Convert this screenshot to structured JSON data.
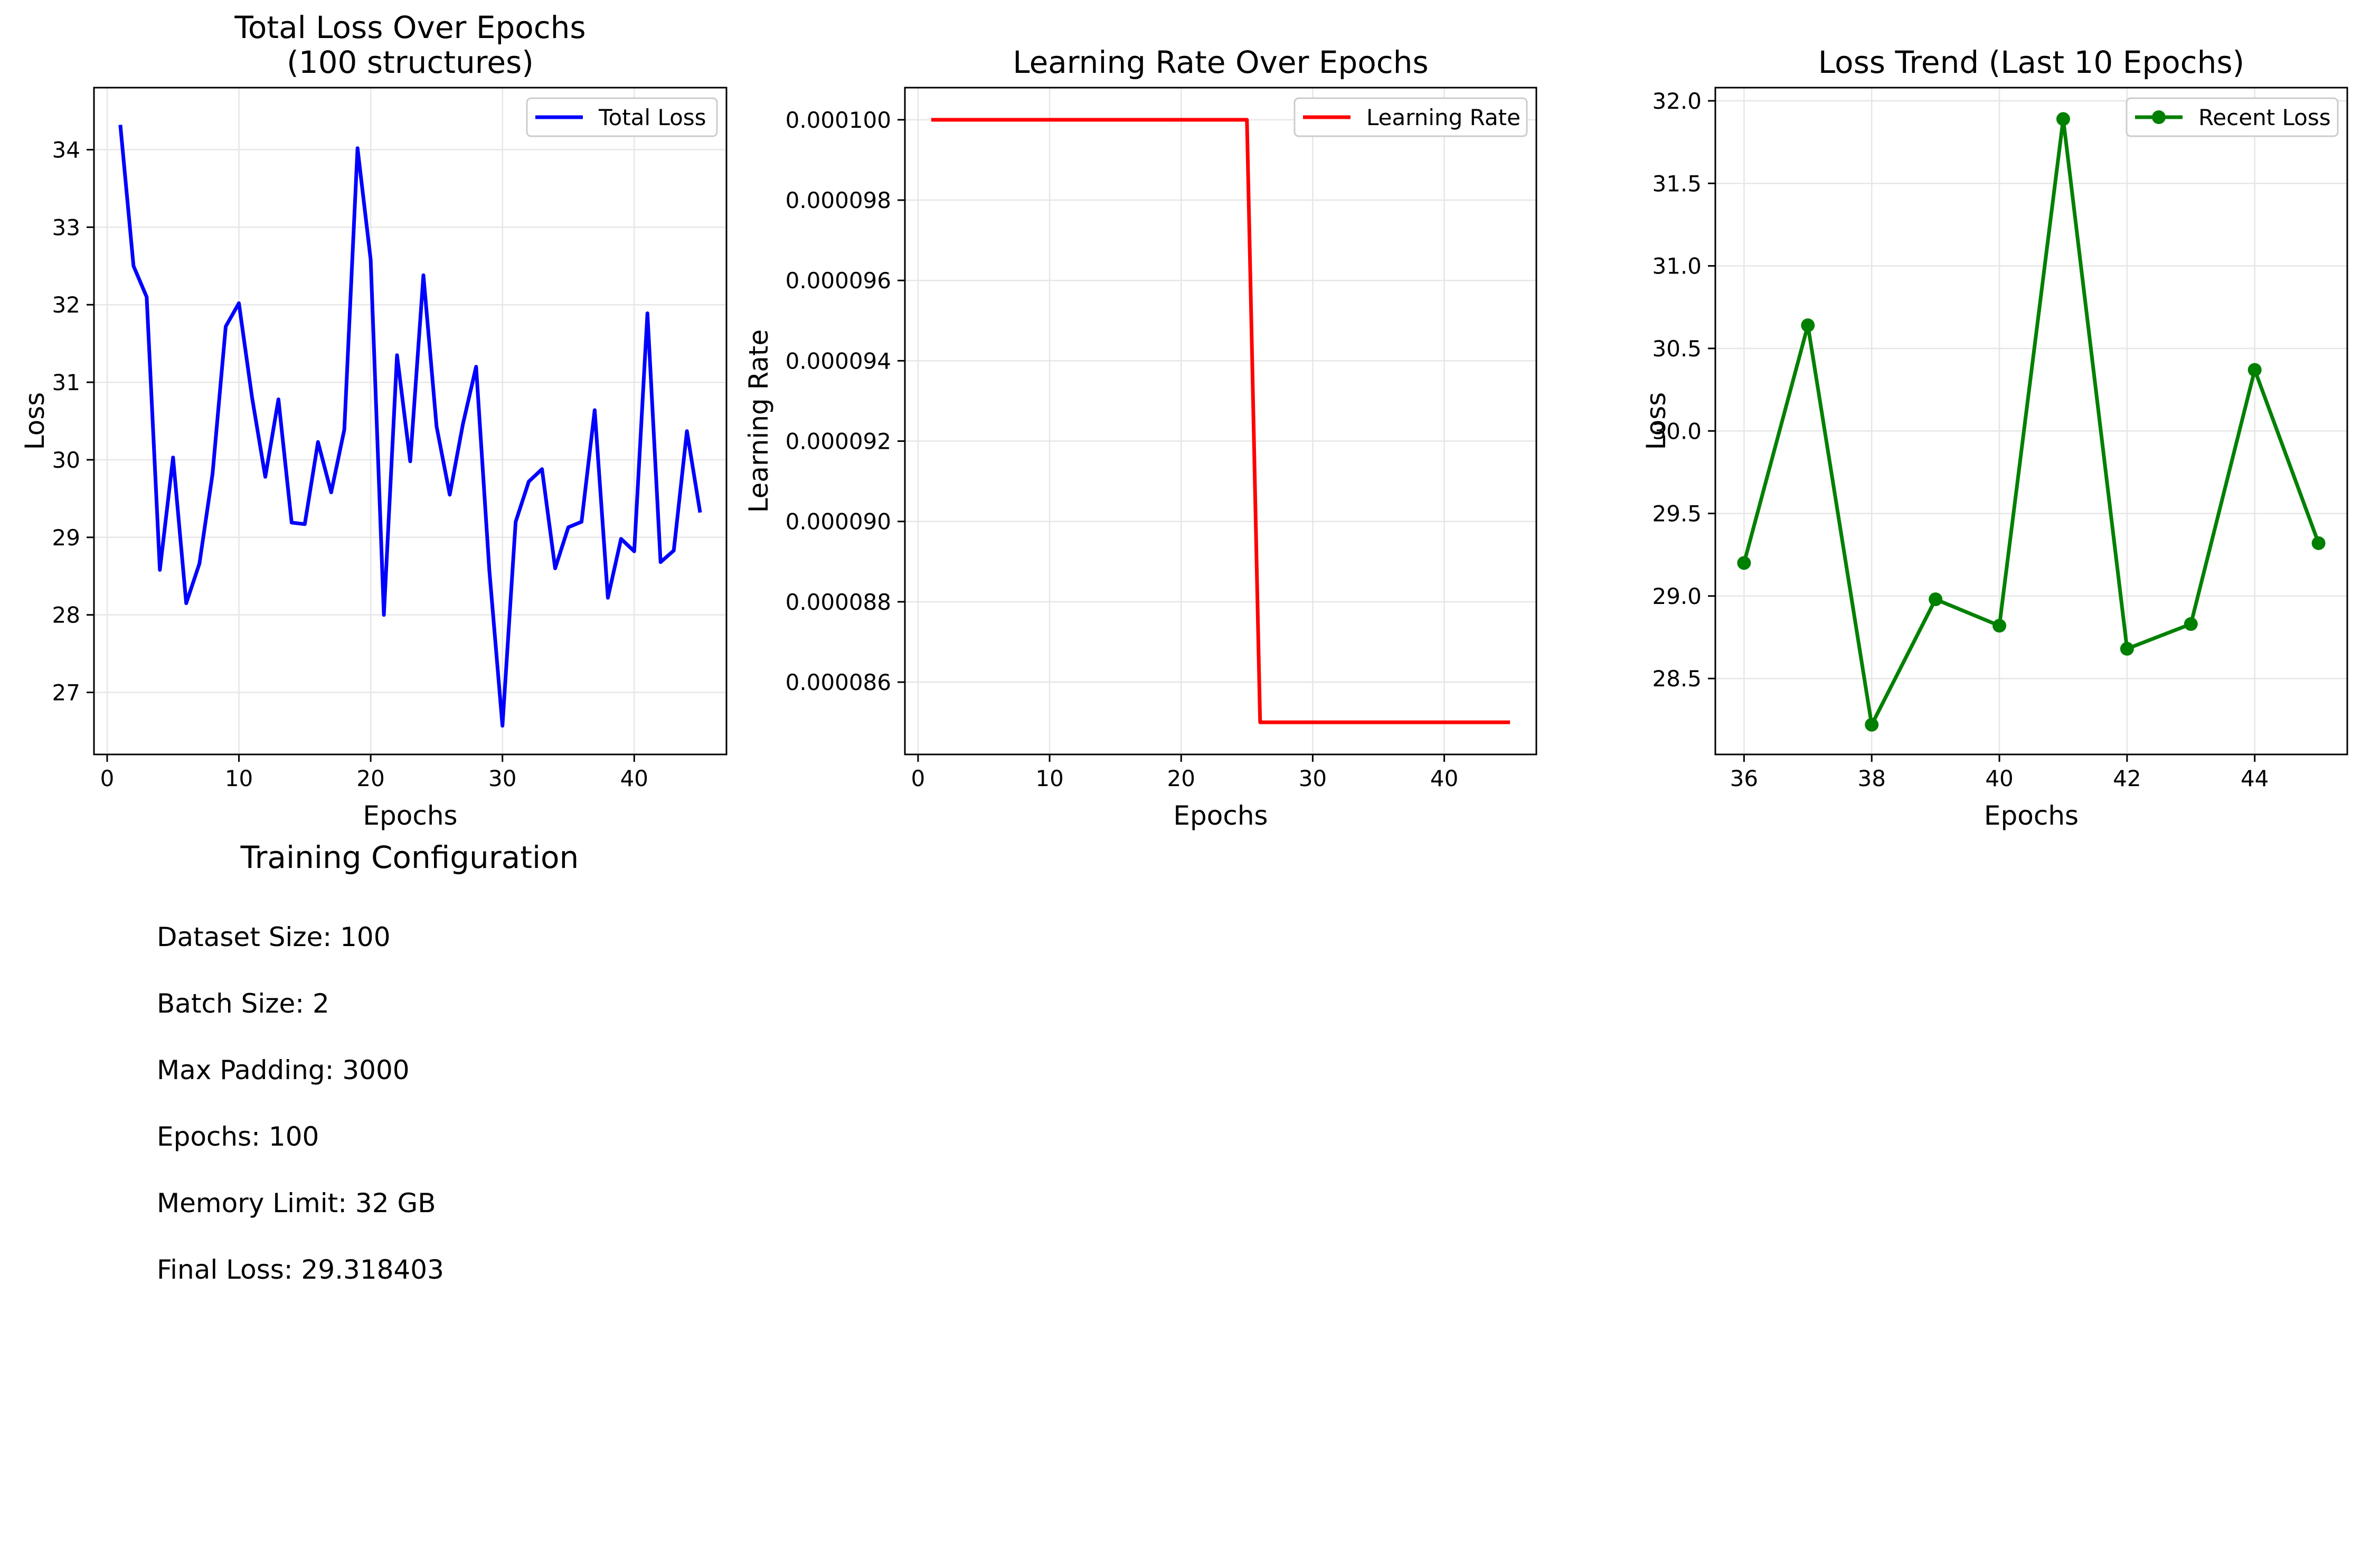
{
  "chart_data": [
    {
      "type": "line",
      "title": "Total Loss Over Epochs\n(100 structures)",
      "xlabel": "Epochs",
      "ylabel": "Loss",
      "xlim": [
        -1,
        47
      ],
      "ylim": [
        26.2,
        34.8
      ],
      "xticks": [
        0,
        10,
        20,
        30,
        40
      ],
      "yticks": [
        27,
        28,
        29,
        30,
        31,
        32,
        33,
        34
      ],
      "grid": true,
      "legend_position": "top-right",
      "series": [
        {
          "name": "Total Loss",
          "color": "#0000ff",
          "marker": false,
          "x": [
            1,
            2,
            3,
            4,
            5,
            6,
            7,
            8,
            9,
            10,
            11,
            12,
            13,
            14,
            15,
            16,
            17,
            18,
            19,
            20,
            21,
            22,
            23,
            24,
            25,
            26,
            27,
            28,
            29,
            30,
            31,
            32,
            33,
            34,
            35,
            36,
            37,
            38,
            39,
            40,
            41,
            42,
            43,
            44,
            45
          ],
          "y": [
            34.32,
            32.5,
            32.1,
            28.58,
            30.03,
            28.15,
            28.66,
            29.82,
            31.72,
            32.02,
            30.8,
            29.78,
            30.78,
            29.19,
            29.17,
            30.23,
            29.58,
            30.39,
            34.02,
            32.58,
            28.0,
            31.35,
            29.98,
            32.38,
            30.43,
            29.55,
            30.46,
            31.2,
            28.58,
            26.57,
            29.2,
            29.72,
            29.88,
            28.6,
            29.13,
            29.2,
            30.64,
            28.22,
            28.98,
            28.82,
            31.89,
            28.68,
            28.83,
            30.37,
            29.32
          ]
        }
      ]
    },
    {
      "type": "line",
      "title": "Learning Rate Over Epochs",
      "xlabel": "Epochs",
      "ylabel": "Learning Rate",
      "xlim": [
        -1,
        47
      ],
      "ylim": [
        8.42e-05,
        0.0001008
      ],
      "xticks": [
        0,
        10,
        20,
        30,
        40
      ],
      "yticks": [
        "0.000086",
        "0.000088",
        "0.000090",
        "0.000092",
        "0.000094",
        "0.000096",
        "0.000098",
        "0.000100"
      ],
      "grid": true,
      "legend_position": "top-right",
      "series": [
        {
          "name": "Learning Rate",
          "color": "#ff0000",
          "marker": false,
          "x": [
            1,
            2,
            3,
            4,
            5,
            6,
            7,
            8,
            9,
            10,
            11,
            12,
            13,
            14,
            15,
            16,
            17,
            18,
            19,
            20,
            21,
            22,
            23,
            24,
            25,
            26,
            27,
            28,
            29,
            30,
            31,
            32,
            33,
            34,
            35,
            36,
            37,
            38,
            39,
            40,
            41,
            42,
            43,
            44,
            45
          ],
          "y": [
            0.0001,
            0.0001,
            0.0001,
            0.0001,
            0.0001,
            0.0001,
            0.0001,
            0.0001,
            0.0001,
            0.0001,
            0.0001,
            0.0001,
            0.0001,
            0.0001,
            0.0001,
            0.0001,
            0.0001,
            0.0001,
            0.0001,
            0.0001,
            0.0001,
            0.0001,
            0.0001,
            0.0001,
            0.0001,
            8.5e-05,
            8.5e-05,
            8.5e-05,
            8.5e-05,
            8.5e-05,
            8.5e-05,
            8.5e-05,
            8.5e-05,
            8.5e-05,
            8.5e-05,
            8.5e-05,
            8.5e-05,
            8.5e-05,
            8.5e-05,
            8.5e-05,
            8.5e-05,
            8.5e-05,
            8.5e-05,
            8.5e-05,
            8.5e-05
          ]
        }
      ]
    },
    {
      "type": "line",
      "title": "Loss Trend (Last 10 Epochs)",
      "xlabel": "Epochs",
      "ylabel": "Loss",
      "xlim": [
        35.55,
        45.45
      ],
      "ylim": [
        28.04,
        32.08
      ],
      "xticks": [
        36,
        38,
        40,
        42,
        44
      ],
      "yticks": [
        "28.5",
        "29.0",
        "29.5",
        "30.0",
        "30.5",
        "31.0",
        "31.5",
        "32.0"
      ],
      "grid": true,
      "legend_position": "top-right",
      "series": [
        {
          "name": "Recent Loss",
          "color": "#008000",
          "marker": true,
          "x": [
            36,
            37,
            38,
            39,
            40,
            41,
            42,
            43,
            44,
            45
          ],
          "y": [
            29.2,
            30.64,
            28.22,
            28.98,
            28.82,
            31.89,
            28.68,
            28.83,
            30.37,
            29.32
          ]
        }
      ]
    }
  ],
  "config": {
    "title": "Training Configuration",
    "items": [
      "Dataset Size: 100",
      "Batch Size: 2",
      "Max Padding: 3000",
      "Epochs: 100",
      "Memory Limit: 32 GB",
      "Final Loss: 29.318403"
    ]
  }
}
